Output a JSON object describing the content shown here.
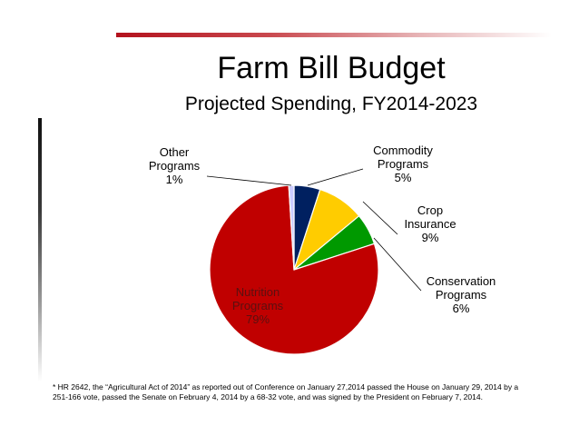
{
  "title": "Farm Bill Budget",
  "subtitle": "Projected Spending, FY2014-2023",
  "footnote": "* HR 2642, the “Agricultural Act of 2014” as reported out of Conference on January 27,2014 passed the House on January 29, 2014 by a 251-166 vote, passed the Senate on February 4, 2014 by a 68-32 vote, and was signed by the President on February 7, 2014.",
  "chart_data": {
    "type": "pie",
    "title": "Farm Bill Budget",
    "subtitle": "Projected Spending, FY2014-2023",
    "legend": "none",
    "slices": [
      {
        "name": "Commodity Programs",
        "label_lines": [
          "Commodity",
          "Programs",
          "5%"
        ],
        "value": 5,
        "color": "#002060"
      },
      {
        "name": "Crop Insurance",
        "label_lines": [
          "Crop",
          "Insurance",
          "9%"
        ],
        "value": 9,
        "color": "#ffcc00"
      },
      {
        "name": "Conservation Programs",
        "label_lines": [
          "Conservation",
          "Programs",
          "6%"
        ],
        "value": 6,
        "color": "#009900"
      },
      {
        "name": "Nutrition Programs",
        "label_lines": [
          "Nutrition",
          "Programs",
          "79%"
        ],
        "value": 79,
        "color": "#c00000"
      },
      {
        "name": "Other Programs",
        "label_lines": [
          "Other",
          "Programs",
          "1%"
        ],
        "value": 1,
        "color": "#ccccff"
      }
    ]
  }
}
